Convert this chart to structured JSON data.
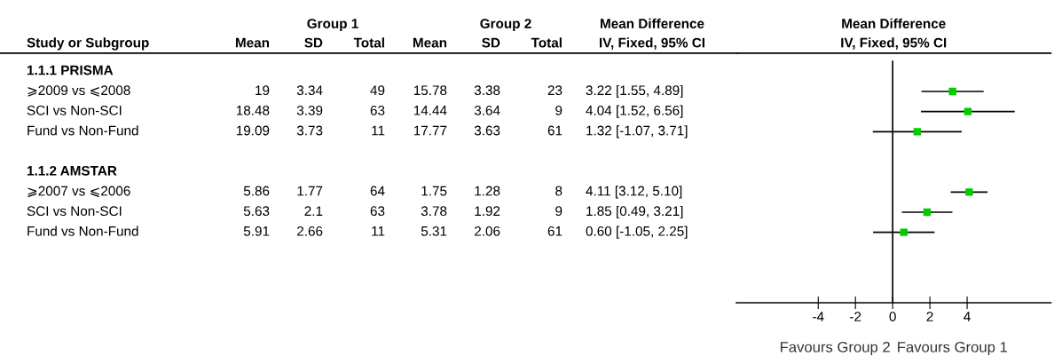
{
  "chart_data": [
    {
      "type": "heatmap",
      "ylabel": "Study or Subgroup",
      "annotations": [
        "Group 1",
        "Group 2",
        "Mean Difference",
        "IV, Fixed, 95% CI"
      ],
      "categories": [
        "Mean",
        "SD",
        "Total",
        "Mean",
        "SD",
        "Total"
      ],
      "y_categories": [
        "1.1.1 PRISMA",
        "⩾2009 vs ⩽2008",
        "SCI vs Non-SCI",
        "Fund vs Non-Fund"
      ],
      "cells": [
        [
          null,
          null,
          null,
          null,
          null,
          null
        ],
        [
          19,
          3.34,
          49,
          15.78,
          3.38,
          23
        ],
        [
          18.48,
          3.39,
          63,
          14.44,
          3.64,
          9
        ],
        [
          19.09,
          3.73,
          11,
          17.77,
          3.63,
          61
        ]
      ],
      "cell_labels": [
        [
          null,
          null,
          null,
          null,
          null,
          null
        ],
        [
          "19",
          "3.34",
          "49",
          "15.78",
          "3.38",
          "23"
        ],
        [
          "18.48",
          "3.39",
          "63",
          "14.44",
          "3.64",
          "9"
        ],
        [
          "19.09",
          "3.73",
          "11",
          "17.77",
          "3.63",
          "61"
        ]
      ]
    },
    {
      "type": "heatmap",
      "categories": [
        null,
        null,
        null,
        null,
        null,
        null
      ],
      "y_categories": [
        "1.1.2 AMSTAR",
        "⩾2007 vs ⩽2006",
        "SCI vs Non-SCI",
        "Fund vs Non-Fund"
      ],
      "cells": [
        [
          null,
          null,
          null,
          null,
          null,
          null
        ],
        [
          5.86,
          1.77,
          64,
          1.75,
          1.28,
          8
        ],
        [
          5.63,
          2.1,
          63,
          3.78,
          1.92,
          9
        ],
        [
          5.91,
          2.66,
          11,
          5.31,
          2.06,
          61
        ]
      ],
      "cell_labels": [
        [
          null,
          null,
          null,
          null,
          null,
          null
        ],
        [
          "5.86",
          "1.77",
          "64",
          "1.75",
          "1.28",
          "8"
        ],
        [
          "5.63",
          "2.1",
          "63",
          "3.78",
          "1.92",
          "9"
        ],
        [
          "5.91",
          "2.66",
          "11",
          "5.31",
          "2.06",
          "61"
        ]
      ]
    },
    {
      "type": "scatter",
      "orientation": "horizontal",
      "title": "Mean Difference",
      "subtitle": "IV, Fixed, 95% CI",
      "categories": [
        null,
        null,
        null,
        null,
        null,
        null,
        null,
        null,
        null,
        null,
        null,
        null
      ],
      "values": [
        null,
        3.22,
        4.04,
        1.32,
        null,
        null,
        4.11,
        1.85,
        0.6,
        null,
        null,
        null
      ],
      "errors": [
        null,
        [
          1.55,
          4.89
        ],
        [
          1.52,
          6.56
        ],
        [
          -1.07,
          3.71
        ],
        null,
        null,
        [
          3.12,
          5.1
        ],
        [
          0.49,
          3.21
        ],
        [
          -1.05,
          2.25
        ],
        null,
        null,
        null
      ],
      "value_labels": [
        null,
        "3.22 [1.55, 4.89]",
        "4.04 [1.52, 6.56]",
        "1.32 [-1.07, 3.71]",
        null,
        null,
        "4.11 [3.12, 5.10]",
        "1.85 [0.49, 3.21]",
        "0.60 [-1.05, 2.25]",
        null,
        null,
        null
      ],
      "color": "#00cc00",
      "xlim": [
        -8.4,
        8.5
      ],
      "xticks": [
        -4,
        -2,
        0,
        2,
        4
      ],
      "tick_labels": "x",
      "ref_lines": [
        {
          "axis": "x",
          "value": 0,
          "color": "#000000"
        }
      ],
      "annotations": [
        "Favours Group 2",
        "Favours Group 1"
      ]
    }
  ]
}
